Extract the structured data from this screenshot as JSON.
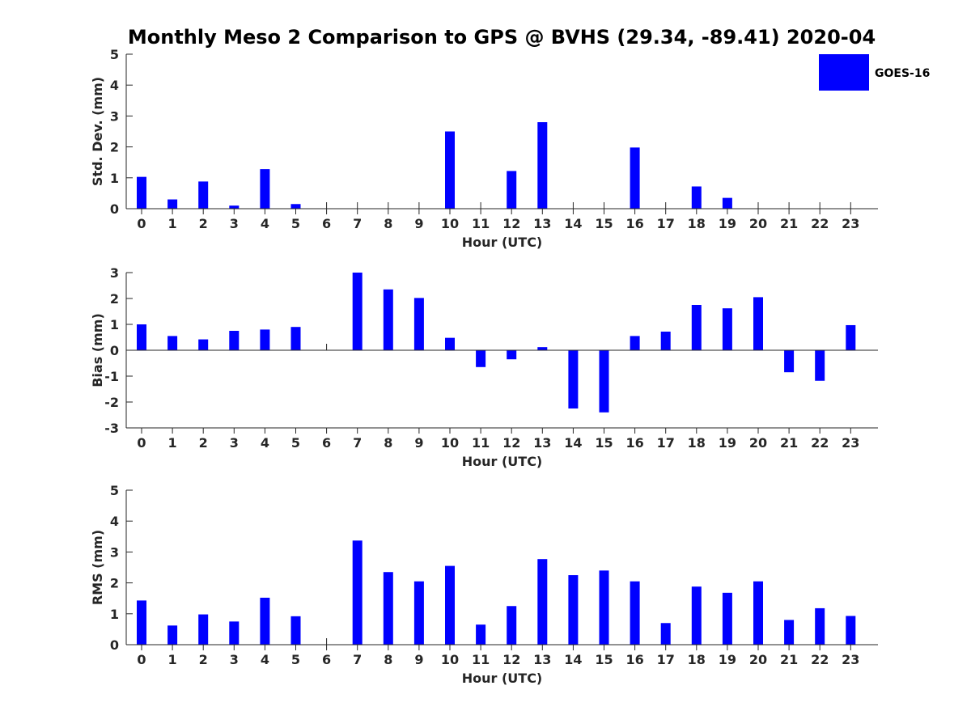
{
  "chart_data": [
    {
      "type": "bar",
      "title": "Monthly Meso 2 Comparison to GPS @ BVHS (29.34, -89.41) 2020-04",
      "xlabel": "Hour (UTC)",
      "ylabel": "Std. Dev. (mm)",
      "ylim": [
        0,
        5
      ],
      "yticks": [
        0,
        1,
        2,
        3,
        4,
        5
      ],
      "categories": [
        "0",
        "1",
        "2",
        "3",
        "4",
        "5",
        "6",
        "7",
        "8",
        "9",
        "10",
        "11",
        "12",
        "13",
        "14",
        "15",
        "16",
        "17",
        "18",
        "19",
        "20",
        "21",
        "22",
        "23"
      ],
      "series": [
        {
          "name": "GOES-16",
          "values": [
            1.03,
            0.3,
            0.88,
            0.1,
            1.28,
            0.15,
            null,
            null,
            null,
            null,
            2.5,
            null,
            1.22,
            2.8,
            null,
            null,
            1.98,
            null,
            0.72,
            0.35,
            null,
            null,
            null,
            null
          ]
        }
      ],
      "legend": "top-right",
      "grid": false
    },
    {
      "type": "bar",
      "xlabel": "Hour (UTC)",
      "ylabel": "Bias (mm)",
      "ylim": [
        -3,
        3
      ],
      "yticks": [
        -3,
        -2,
        -1,
        0,
        1,
        2,
        3
      ],
      "categories": [
        "0",
        "1",
        "2",
        "3",
        "4",
        "5",
        "6",
        "7",
        "8",
        "9",
        "10",
        "11",
        "12",
        "13",
        "14",
        "15",
        "16",
        "17",
        "18",
        "19",
        "20",
        "21",
        "22",
        "23"
      ],
      "series": [
        {
          "name": "GOES-16",
          "values": [
            1.0,
            0.55,
            0.42,
            0.75,
            0.8,
            0.9,
            null,
            3.0,
            2.35,
            2.02,
            0.48,
            -0.65,
            -0.35,
            0.12,
            -2.25,
            -2.4,
            0.55,
            0.72,
            1.75,
            1.62,
            2.05,
            -0.85,
            -1.18,
            0.97
          ]
        }
      ],
      "grid": false
    },
    {
      "type": "bar",
      "xlabel": "Hour (UTC)",
      "ylabel": "RMS (mm)",
      "ylim": [
        0,
        5
      ],
      "yticks": [
        0,
        1,
        2,
        3,
        4,
        5
      ],
      "categories": [
        "0",
        "1",
        "2",
        "3",
        "4",
        "5",
        "6",
        "7",
        "8",
        "9",
        "10",
        "11",
        "12",
        "13",
        "14",
        "15",
        "16",
        "17",
        "18",
        "19",
        "20",
        "21",
        "22",
        "23"
      ],
      "series": [
        {
          "name": "GOES-16",
          "values": [
            1.43,
            0.62,
            0.98,
            0.75,
            1.52,
            0.92,
            null,
            3.37,
            2.35,
            2.05,
            2.55,
            0.65,
            1.25,
            2.77,
            2.25,
            2.4,
            2.05,
            0.7,
            1.88,
            1.68,
            2.05,
            0.8,
            1.18,
            0.93
          ]
        }
      ],
      "grid": false
    }
  ],
  "colors": {
    "bar": "#0000ff",
    "axis": "#262626"
  }
}
